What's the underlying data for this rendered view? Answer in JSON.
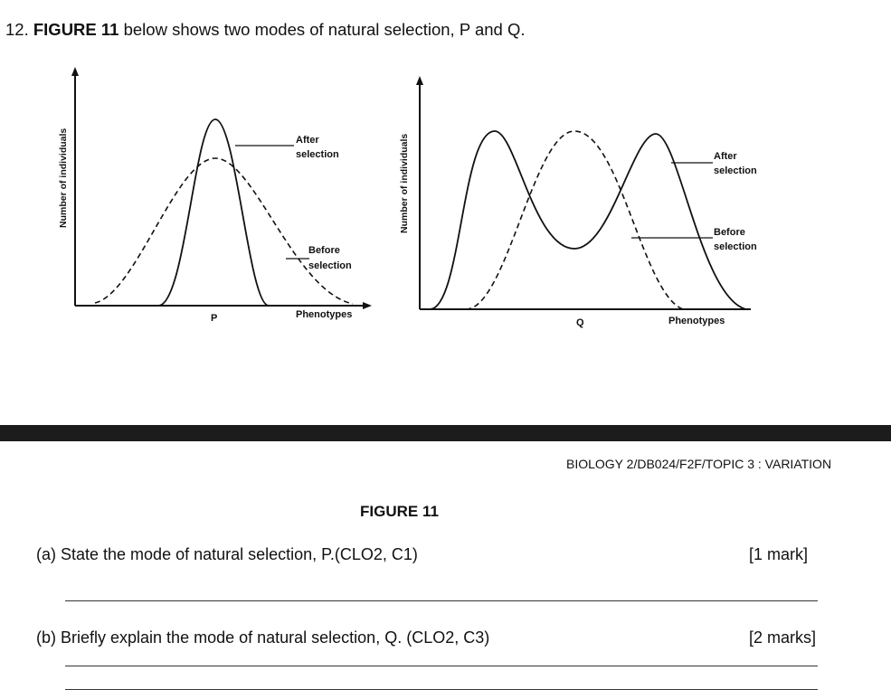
{
  "question": {
    "number": "12.",
    "figure_ref": "FIGURE 11",
    "intro_rest": "below shows two modes of natural selection, P and Q."
  },
  "graph_p": {
    "y_label": "Number of individuals",
    "x_label": "Phenotypes",
    "mode_label": "P",
    "after_label_1": "After",
    "after_label_2": "selection",
    "before_label_1": "Before",
    "before_label_2": "selection"
  },
  "graph_q": {
    "y_label": "Number of individuals",
    "x_label": "Phenotypes",
    "mode_label": "Q",
    "after_label_1": "After",
    "after_label_2": "selection",
    "before_label_1": "Before",
    "before_label_2": "selection"
  },
  "footer": "BIOLOGY 2/DB024/F2F/TOPIC 3 : VARIATION",
  "figure_title": "FIGURE 11",
  "part_a": {
    "text": "(a) State the mode of natural selection, P.(CLO2, C1)",
    "marks": "[1 mark]"
  },
  "part_b": {
    "text": "(b) Briefly explain the mode of natural selection, Q. (CLO2, C3)",
    "marks": "[2 marks]"
  },
  "colors": {
    "ink": "#111111",
    "band": "#1c1c1c"
  }
}
